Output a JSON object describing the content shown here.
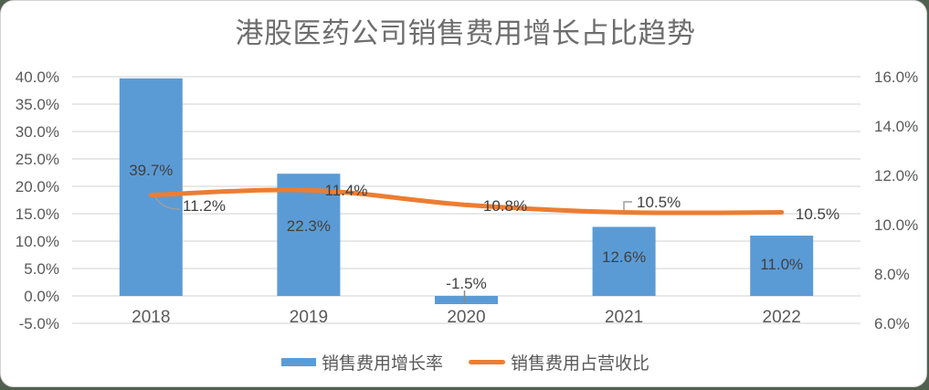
{
  "chart_data": {
    "type": "combo",
    "title": "港股医药公司销售费用增长占比趋势",
    "categories": [
      "2018",
      "2019",
      "2020",
      "2021",
      "2022"
    ],
    "series": [
      {
        "name": "销售费用增长率",
        "type": "bar",
        "axis": "left",
        "color": "#5B9BD5",
        "values": [
          39.7,
          22.3,
          -1.5,
          12.6,
          11.0
        ],
        "labels": [
          "39.7%",
          "22.3%",
          "-1.5%",
          "12.6%",
          "11.0%"
        ]
      },
      {
        "name": "销售费用占营收比",
        "type": "line",
        "axis": "right",
        "color": "#ED7D31",
        "values": [
          11.2,
          11.4,
          10.8,
          10.5,
          10.5
        ],
        "labels": [
          "11.2%",
          "11.4%",
          "10.8%",
          "10.5%",
          "10.5%"
        ]
      }
    ],
    "left_axis": {
      "min": -5,
      "max": 40,
      "step": 5,
      "ticks": [
        "40.0%",
        "35.0%",
        "30.0%",
        "25.0%",
        "20.0%",
        "15.0%",
        "10.0%",
        "5.0%",
        "0.0%",
        "-5.0%"
      ]
    },
    "right_axis": {
      "min": 6,
      "max": 16,
      "step": 2,
      "ticks": [
        "16.0%",
        "14.0%",
        "12.0%",
        "10.0%",
        "8.0%",
        "6.0%"
      ]
    },
    "grid": true,
    "legend_position": "bottom"
  },
  "legend": {
    "items": [
      {
        "label": "销售费用增长率",
        "color": "#5B9BD5",
        "swatch": "bar"
      },
      {
        "label": "销售费用占营收比",
        "color": "#ED7D31",
        "swatch": "line"
      }
    ]
  },
  "colors": {
    "bar": "#5B9BD5",
    "line": "#ED7D31",
    "gridline": "#D9D9D9",
    "axis_text": "#595959",
    "data_label_text": "#404040",
    "title_text": "#6E6E6E",
    "leader_line": "#9E9E9E",
    "chart_background": "#FFFFFF",
    "chart_border": "#D2D2D2",
    "page_background": "#50604F"
  }
}
